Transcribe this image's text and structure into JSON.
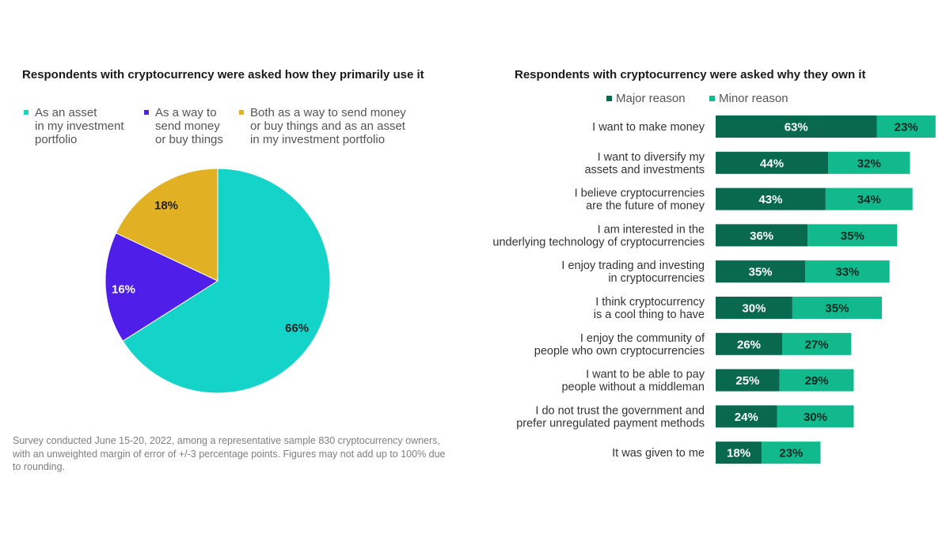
{
  "chart_data": [
    {
      "type": "pie",
      "title": "Respondents with cryptocurrency were asked how they primarily use it",
      "slices": [
        {
          "label": "As an asset\nin my investment\nportfolio",
          "value": 66,
          "value_label": "66%",
          "color": "#14d3c9"
        },
        {
          "label": "As a way to\nsend money\nor buy things",
          "value": 16,
          "value_label": "16%",
          "color": "#4f1ee8"
        },
        {
          "label": "Both as a way to send money\nor buy things and as an asset\nin my investment portfolio",
          "value": 18,
          "value_label": "18%",
          "color": "#e1b123"
        }
      ],
      "legend_position": "top"
    },
    {
      "type": "bar",
      "orientation": "horizontal",
      "stacked": true,
      "title": "Respondents with cryptocurrency were asked why they own it",
      "categories": [
        "I want to make money",
        "I want to diversify my\nassets and investments",
        "I believe cryptocurrencies\nare the future of money",
        "I am interested in the\nunderlying technology of cryptocurrencies",
        "I enjoy trading and investing\nin cryptocurrencies",
        "I think cryptocurrency\nis a cool thing to have",
        "I enjoy the community of\npeople who own cryptocurrencies",
        "I want to be able to pay\npeople without a middleman",
        "I do not trust the government and\nprefer unregulated payment methods",
        "It was given to me"
      ],
      "series": [
        {
          "name": "Major reason",
          "color": "#08694f",
          "values": [
            63,
            44,
            43,
            36,
            35,
            30,
            26,
            25,
            24,
            18
          ]
        },
        {
          "name": "Minor reason",
          "color": "#12b98d",
          "values": [
            23,
            32,
            34,
            35,
            33,
            35,
            27,
            29,
            30,
            23
          ]
        }
      ],
      "value_suffix": "%",
      "legend_position": "top"
    }
  ],
  "footnote": "Survey conducted June 15-20, 2022, among a representative sample 830 cryptocurrency owners, with an unweighted margin of error of +/-3 percentage points. Figures may not add up to 100% due to rounding."
}
